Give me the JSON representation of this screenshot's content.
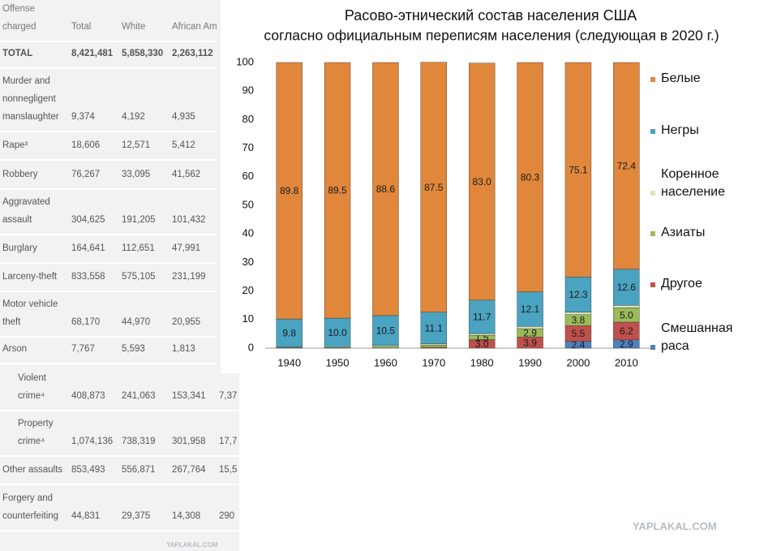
{
  "table": {
    "header": [
      "Offense charged",
      "Total",
      "White",
      "African American"
    ],
    "rows": [
      [
        "TOTAL",
        "8,421,481",
        "5,858,330",
        "2,263,112"
      ],
      [
        "Murder and nonnegligent manslaughter",
        "9,374",
        "4,192",
        "4,935"
      ],
      [
        "Rape³",
        "18,606",
        "12,571",
        "5,412"
      ],
      [
        "Robbery",
        "76,267",
        "33,095",
        "41,562"
      ],
      [
        "Aggravated assault",
        "304,625",
        "191,205",
        "101,432"
      ],
      [
        "Burglary",
        "164,641",
        "112,651",
        "47,991"
      ],
      [
        "Larceny-theft",
        "833,558",
        "575,105",
        "231,199"
      ],
      [
        "Motor vehicle theft",
        "68,170",
        "44,970",
        "20,955"
      ],
      [
        "Arson",
        "7,767",
        "5,593",
        "1,813"
      ],
      [
        "Violent crime⁴",
        "408,873",
        "241,063",
        "153,341",
        "7,37"
      ],
      [
        "Property crime⁴",
        "1,074,136",
        "738,319",
        "301,958",
        "17,7"
      ],
      [
        "Other assaults",
        "853,493",
        "556,871",
        "267,764",
        "15,5"
      ],
      [
        "Forgery and counterfeiting",
        "44,831",
        "29,375",
        "14,308",
        "290"
      ]
    ]
  },
  "watermarks": [
    "YAPLAKAL.COM",
    "YAPLAKAL.COM"
  ],
  "chart_data": {
    "type": "stacked-bar",
    "title": "Расово-этнический состав населения США",
    "subtitle": "согласно официальным переписям населения (следующая в 2020 г.)",
    "categories": [
      "1940",
      "1950",
      "1960",
      "1970",
      "1980",
      "1990",
      "2000",
      "2010"
    ],
    "ylim": [
      0,
      100
    ],
    "yticks": [
      0,
      10,
      20,
      30,
      40,
      50,
      60,
      70,
      80,
      90,
      100
    ],
    "legend": "right",
    "series": [
      {
        "name": "Смешанная раса",
        "color": "#4f81bd",
        "values": [
          null,
          null,
          null,
          null,
          null,
          null,
          2.4,
          2.9
        ],
        "value_labels": [
          null,
          null,
          null,
          null,
          null,
          null,
          "2.4",
          "2.9"
        ]
      },
      {
        "name": "Другое",
        "color": "#c0504d",
        "values": [
          null,
          null,
          null,
          0.3,
          3.0,
          3.9,
          5.5,
          6.2
        ],
        "value_labels": [
          null,
          null,
          null,
          null,
          "3.0",
          "3.9",
          "5.5",
          "6.2"
        ]
      },
      {
        "name": "Азиаты",
        "color": "#9bbb59",
        "values": [
          0.2,
          0.2,
          0.5,
          0.8,
          1.5,
          2.9,
          3.8,
          5.0
        ],
        "value_labels": [
          null,
          null,
          null,
          null,
          "1.5",
          "2.9",
          "3.8",
          "5.0"
        ]
      },
      {
        "name": "Коренное население",
        "color": "#d8e4bc",
        "values": [
          0.2,
          0.3,
          0.4,
          0.4,
          0.6,
          0.8,
          0.9,
          0.9
        ]
      },
      {
        "name": "Негры",
        "color": "#4aa3c0",
        "values": [
          9.8,
          10.0,
          10.5,
          11.1,
          11.7,
          12.1,
          12.3,
          12.6
        ],
        "value_labels": [
          "9.8",
          "10.0",
          "10.5",
          "11.1",
          "11.7",
          "12.1",
          "12.3",
          "12.6"
        ]
      },
      {
        "name": "Белые",
        "color": "#e0873c",
        "values": [
          89.8,
          89.5,
          88.6,
          87.5,
          83.0,
          80.3,
          75.1,
          72.4
        ],
        "value_labels": [
          "89.8",
          "89.5",
          "88.6",
          "87.5",
          "83.0",
          "80.3",
          "75.1",
          "72.4"
        ]
      }
    ]
  }
}
